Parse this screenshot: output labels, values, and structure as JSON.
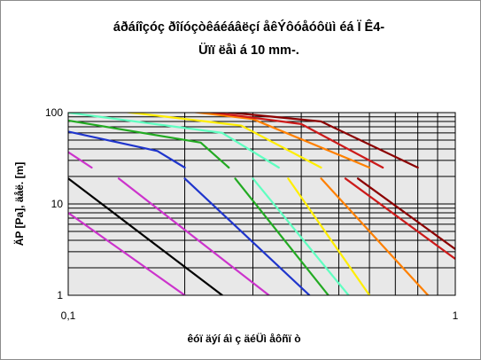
{
  "chart_data": {
    "type": "line",
    "title_line1": "áðáíîçóç ðîíóçòêáéáâëçí åêÝôóåóôüì éá Ï Ê4-",
    "title_line2": "Üïï ëåì á 10 mm-.",
    "xlabel": "êóï äýí áì ç äéÜì åôñï ò",
    "ylabel": "ÄP [Pa], äåë. [m]",
    "xscale": "log",
    "yscale": "log",
    "xlim": [
      0.1,
      1
    ],
    "ylim": [
      1,
      100
    ],
    "x_tick_labels": [
      "0,1",
      "1"
    ],
    "y_tick_labels": [
      "1",
      "10",
      "100"
    ],
    "grid": true,
    "plot_background": "#e8e8e8",
    "series": [
      {
        "color": "#000000",
        "x": [
          0.1,
          0.25
        ],
        "y": [
          19,
          1
        ]
      },
      {
        "color": "#cc33cc",
        "x": [
          0.1,
          0.2
        ],
        "y": [
          8,
          1
        ]
      },
      {
        "color": "#cc33cc",
        "x": [
          0.1,
          0.115
        ],
        "y": [
          37,
          25
        ]
      },
      {
        "color": "#cc33cc",
        "x": [
          0.135,
          0.33
        ],
        "y": [
          19,
          1
        ]
      },
      {
        "color": "#1f35cc",
        "x": [
          0.1,
          0.17,
          0.2
        ],
        "y": [
          62,
          38,
          25
        ]
      },
      {
        "color": "#1f35cc",
        "x": [
          0.2,
          0.42
        ],
        "y": [
          19,
          1
        ]
      },
      {
        "color": "#22aa22",
        "x": [
          0.1,
          0.22,
          0.26
        ],
        "y": [
          82,
          47,
          25
        ]
      },
      {
        "color": "#22aa22",
        "x": [
          0.27,
          0.47
        ],
        "y": [
          19,
          1
        ]
      },
      {
        "color": "#60ffc0",
        "x": [
          0.1,
          0.25,
          0.35
        ],
        "y": [
          100,
          60,
          25
        ]
      },
      {
        "color": "#60ffc0",
        "x": [
          0.3,
          0.53
        ],
        "y": [
          19,
          1
        ]
      },
      {
        "color": "#ffee00",
        "x": [
          0.12,
          0.28,
          0.45
        ],
        "y": [
          110,
          72,
          25
        ]
      },
      {
        "color": "#ffee00",
        "x": [
          0.37,
          0.6
        ],
        "y": [
          19,
          1
        ]
      },
      {
        "color": "#ff8000",
        "x": [
          0.18,
          0.3,
          0.6
        ],
        "y": [
          110,
          85,
          25
        ]
      },
      {
        "color": "#ff8000",
        "x": [
          0.45,
          0.85
        ],
        "y": [
          19,
          1
        ]
      },
      {
        "color": "#cc1a1a",
        "x": [
          0.2,
          0.4,
          0.65
        ],
        "y": [
          110,
          75,
          25
        ]
      },
      {
        "color": "#cc1a1a",
        "x": [
          0.52,
          1
        ],
        "y": [
          19,
          2.5
        ]
      },
      {
        "color": "#8b0000",
        "x": [
          0.2,
          0.45,
          0.8
        ],
        "y": [
          112,
          80,
          25
        ]
      },
      {
        "color": "#8b0000",
        "x": [
          0.56,
          1
        ],
        "y": [
          19,
          3.2
        ]
      }
    ]
  }
}
